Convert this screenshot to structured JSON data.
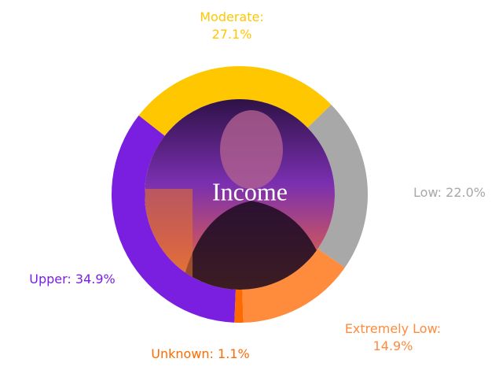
{
  "chart_data": {
    "type": "donut",
    "title": "Income",
    "categories": [
      "Moderate:",
      "Low:",
      "Extremely Low:",
      "Unknown:",
      "Upper:"
    ],
    "values": [
      27.1,
      22.0,
      14.9,
      1.1,
      34.9
    ],
    "value_labels": [
      "27.1%",
      "22.0%",
      "14.9%",
      "1.1%",
      "34.9%"
    ],
    "colors": [
      "#ffc700",
      "#a8a8a8",
      "#ff8b3d",
      "#ff6a00",
      "#7a1fe0"
    ]
  }
}
